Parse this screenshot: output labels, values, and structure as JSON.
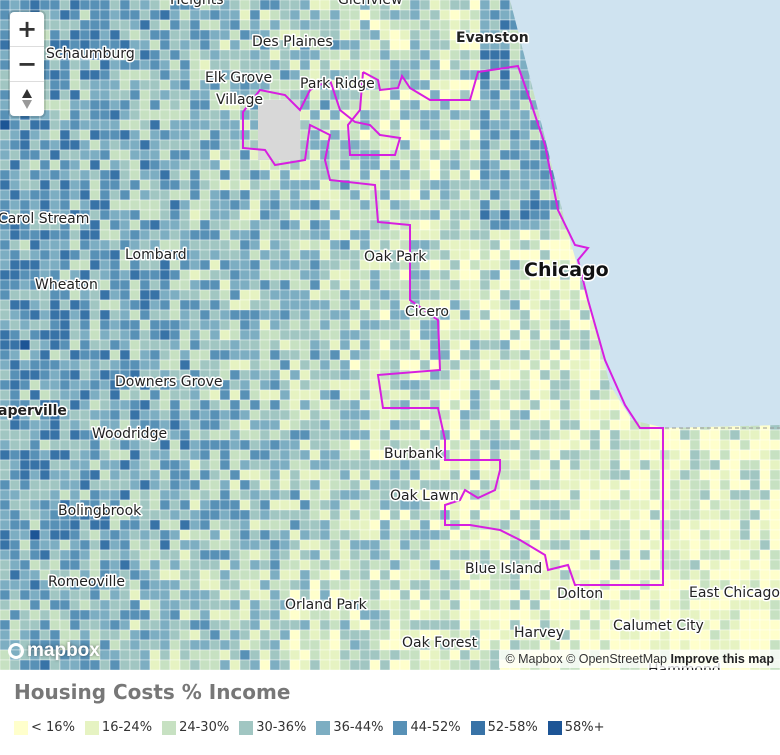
{
  "places": [
    "Heights",
    "Glenview",
    "Schaumburg",
    "Des Plaines",
    "Evanston",
    "Elk Grove",
    "Village",
    "Park Ridge",
    "Carol Stream",
    "Lombard",
    "Oak Park",
    "Chicago",
    "Wheaton",
    "Cicero",
    "Downers Grove",
    "aperville",
    "Woodridge",
    "Burbank",
    "Oak Lawn",
    "Bolingbrook",
    "Blue Island",
    "Romeoville",
    "Dolton",
    "East Chicago",
    "Orland Park",
    "Calumet City",
    "Harvey",
    "Oak Forest",
    "Hammond"
  ],
  "controls": {
    "zoom_in": "+",
    "zoom_out": "−"
  },
  "logo": "mapbox",
  "attribution": [
    "© Mapbox",
    "© OpenStreetMap",
    "Improve this map"
  ],
  "legend": {
    "title": "Housing Costs % Income",
    "items": [
      {
        "label": "< 16%",
        "color": "#ffffcc"
      },
      {
        "label": "16-24%",
        "color": "#e6f3c2"
      },
      {
        "label": "24-30%",
        "color": "#c7e1c2"
      },
      {
        "label": "30-36%",
        "color": "#a1c6c2"
      },
      {
        "label": "36-44%",
        "color": "#7daec2"
      },
      {
        "label": "44-52%",
        "color": "#5891b6"
      },
      {
        "label": "52-58%",
        "color": "#3873a7"
      },
      {
        "label": "58%+",
        "color": "#1d5596"
      }
    ]
  }
}
